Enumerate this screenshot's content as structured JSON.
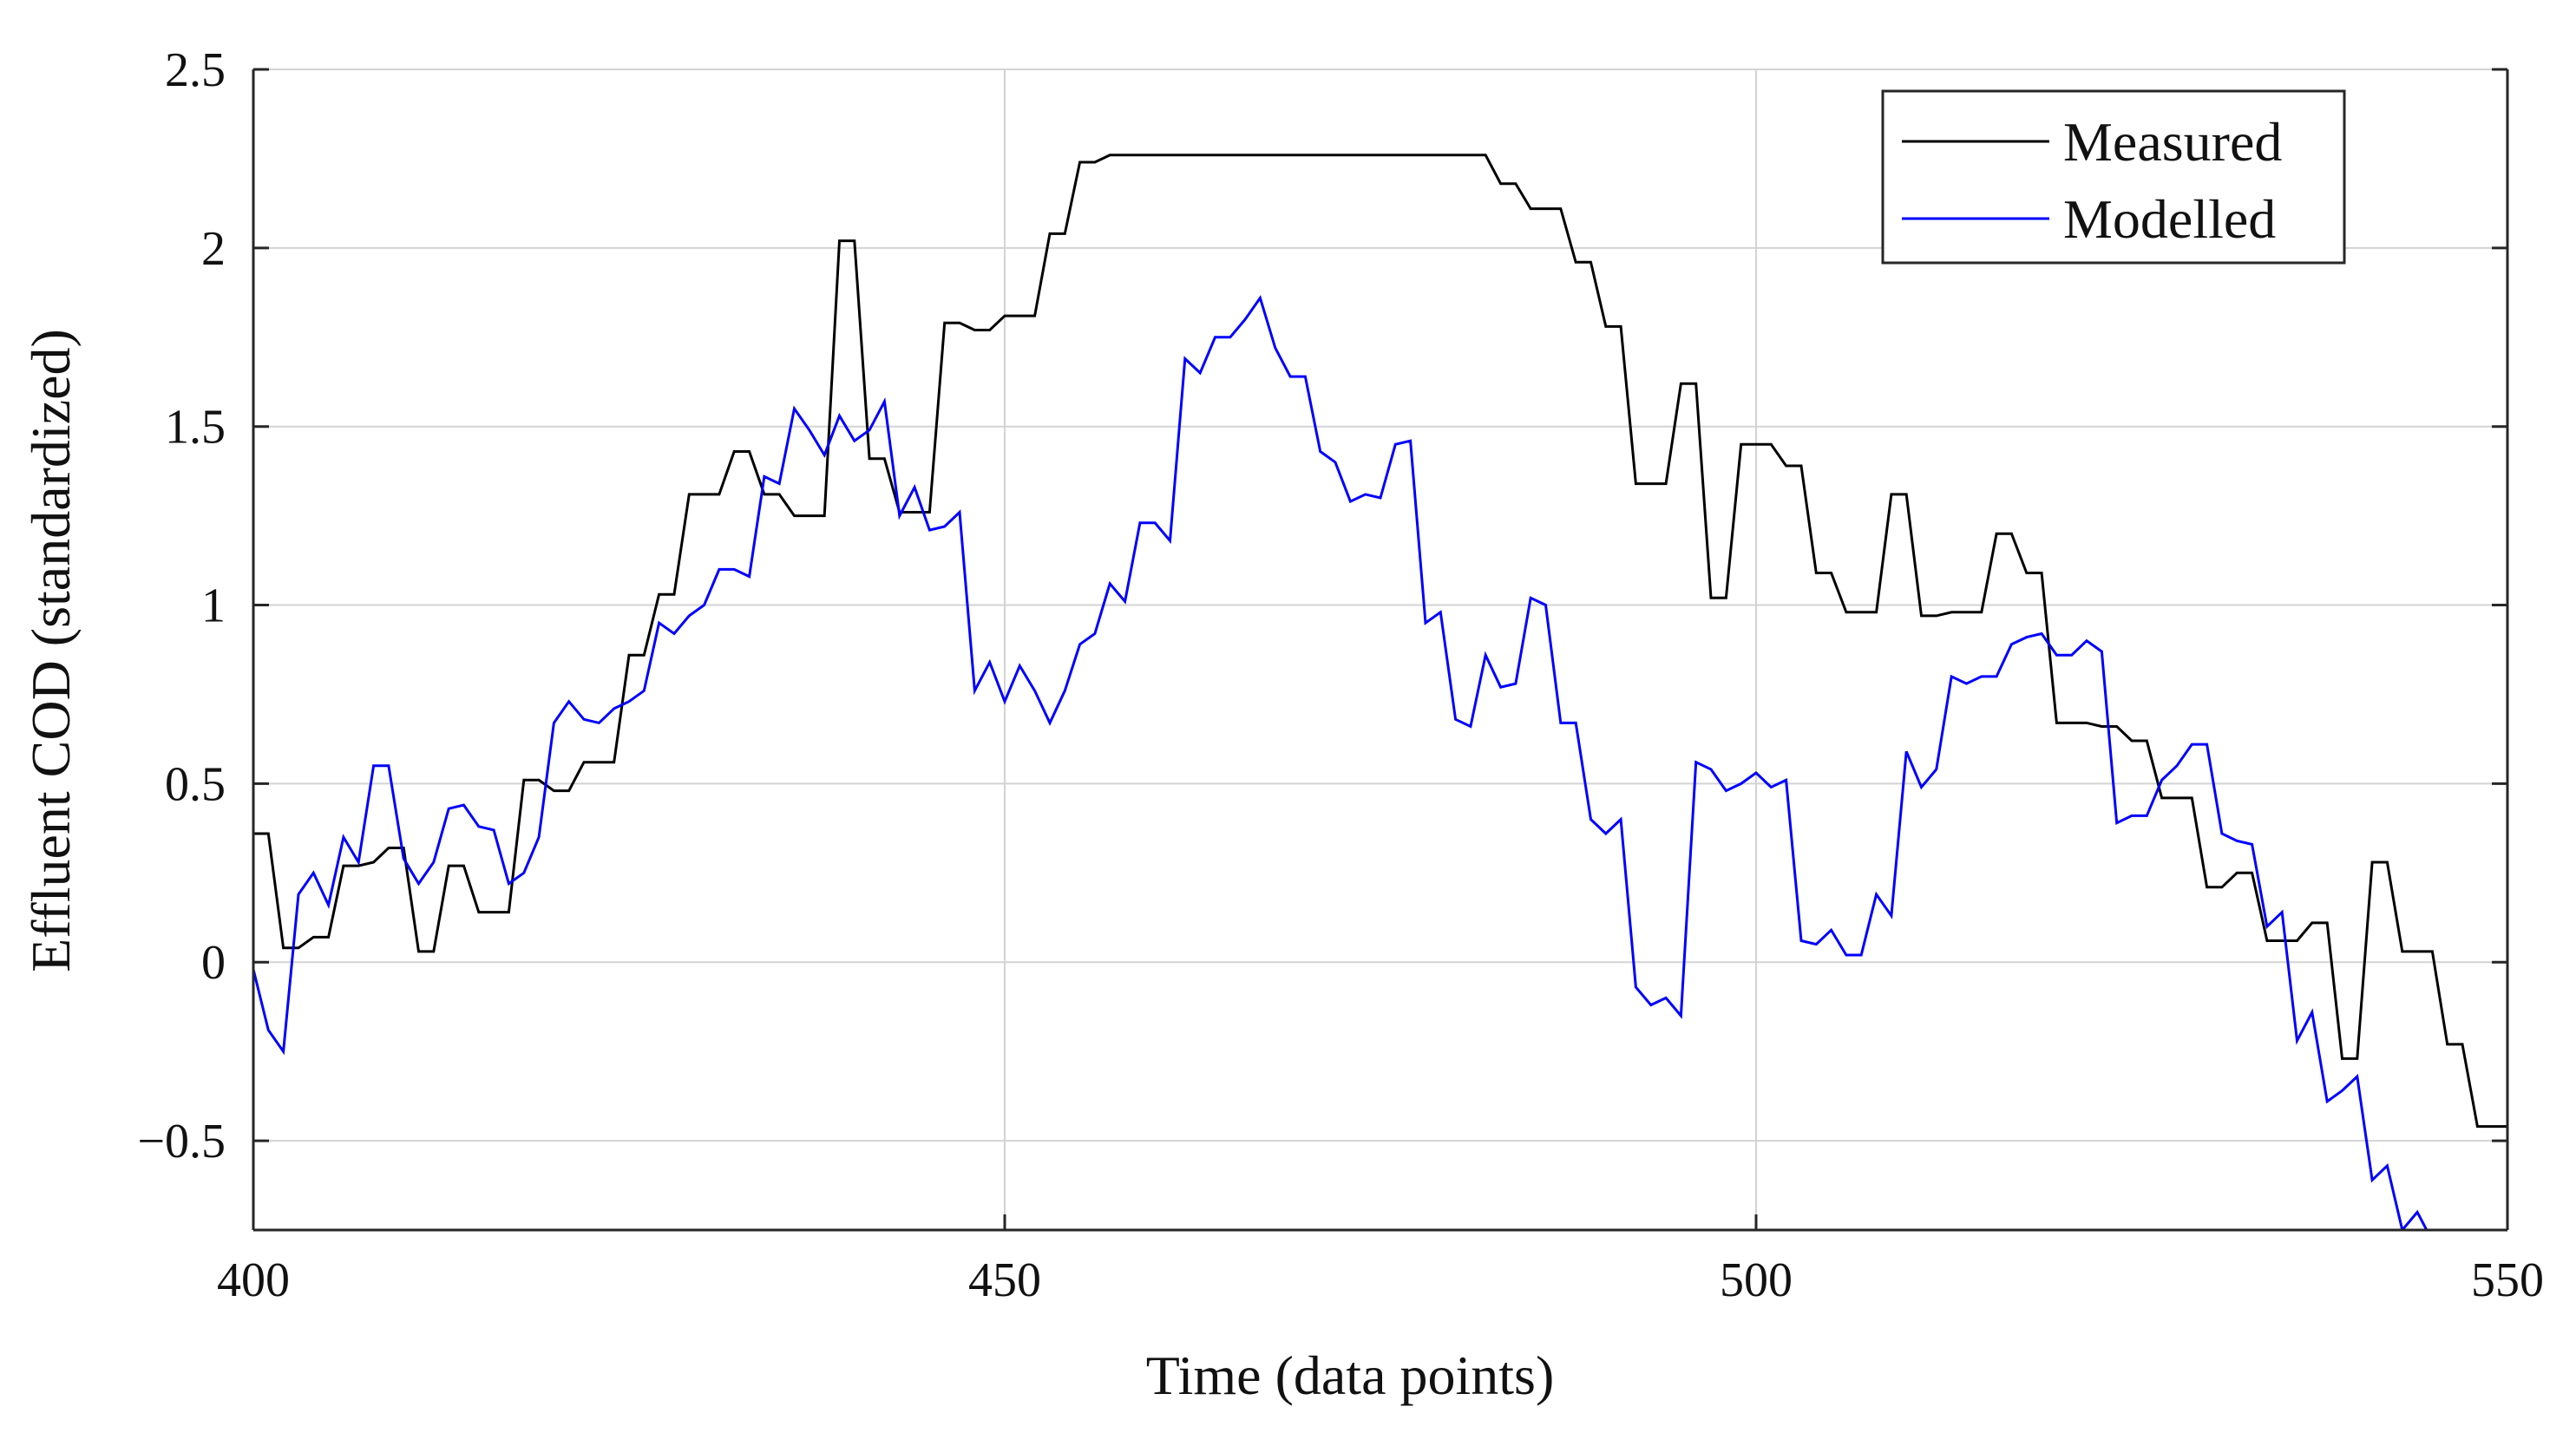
{
  "chart_data": {
    "type": "line",
    "xlabel": "Time (data points)",
    "ylabel": "Effluent COD (standardized)",
    "xlim": [
      400,
      550
    ],
    "ylim": [
      -0.75,
      2.5
    ],
    "xticks": [
      400,
      450,
      500,
      550
    ],
    "xtick_labels": [
      "400",
      "450",
      "500",
      "550"
    ],
    "yticks": [
      -0.5,
      0,
      0.5,
      1,
      1.5,
      2,
      2.5
    ],
    "ytick_labels": [
      "−0.5",
      "0",
      "0.5",
      "1",
      "1.5",
      "2",
      "2.5"
    ],
    "grid": true,
    "legend_position": "top-right",
    "series": [
      {
        "name": "Measured",
        "color": "#000000",
        "x": [
          400,
          401,
          402,
          403,
          404,
          405,
          406,
          407,
          408,
          409,
          410,
          411,
          412,
          413,
          414,
          415,
          416,
          417,
          418,
          419,
          420,
          421,
          422,
          423,
          424,
          425,
          426,
          427,
          428,
          429,
          430,
          431,
          432,
          433,
          434,
          435,
          436,
          437,
          438,
          439,
          440,
          441,
          442,
          443,
          444,
          445,
          446,
          447,
          448,
          449,
          450,
          451,
          452,
          453,
          454,
          455,
          456,
          457,
          458,
          459,
          460,
          461,
          462,
          463,
          464,
          465,
          466,
          467,
          468,
          469,
          470,
          471,
          472,
          473,
          474,
          475,
          476,
          477,
          478,
          479,
          480,
          481,
          482,
          483,
          484,
          485,
          486,
          487,
          488,
          489,
          490,
          491,
          492,
          493,
          494,
          495,
          496,
          497,
          498,
          499,
          500,
          501,
          502,
          503,
          504,
          505,
          506,
          507,
          508,
          509,
          510,
          511,
          512,
          513,
          514,
          515,
          516,
          517,
          518,
          519,
          520,
          521,
          522,
          523,
          524,
          525,
          526,
          527,
          528,
          529,
          530,
          531,
          532,
          533,
          534,
          535,
          536,
          537,
          538,
          539,
          540,
          541,
          542,
          543,
          544,
          545,
          546,
          547,
          548,
          549,
          550
        ],
        "y": [
          0.36,
          0.36,
          0.04,
          0.04,
          0.07,
          0.07,
          0.27,
          0.27,
          0.28,
          0.32,
          0.32,
          0.03,
          0.03,
          0.27,
          0.27,
          0.14,
          0.14,
          0.14,
          0.51,
          0.51,
          0.48,
          0.48,
          0.56,
          0.56,
          0.56,
          0.86,
          0.86,
          1.03,
          1.03,
          1.31,
          1.31,
          1.31,
          1.43,
          1.43,
          1.31,
          1.31,
          1.25,
          1.25,
          1.25,
          2.02,
          2.02,
          1.41,
          1.41,
          1.26,
          1.26,
          1.26,
          1.79,
          1.79,
          1.77,
          1.77,
          1.81,
          1.81,
          1.81,
          2.04,
          2.04,
          2.24,
          2.24,
          2.26,
          2.26,
          2.26,
          2.26,
          2.26,
          2.26,
          2.26,
          2.26,
          2.26,
          2.26,
          2.26,
          2.26,
          2.26,
          2.26,
          2.26,
          2.26,
          2.26,
          2.26,
          2.26,
          2.26,
          2.26,
          2.26,
          2.26,
          2.26,
          2.26,
          2.26,
          2.18,
          2.18,
          2.11,
          2.11,
          2.11,
          1.96,
          1.96,
          1.78,
          1.78,
          1.34,
          1.34,
          1.34,
          1.62,
          1.62,
          1.02,
          1.02,
          1.45,
          1.45,
          1.45,
          1.39,
          1.39,
          1.09,
          1.09,
          0.98,
          0.98,
          0.98,
          1.31,
          1.31,
          0.97,
          0.97,
          0.98,
          0.98,
          0.98,
          1.2,
          1.2,
          1.09,
          1.09,
          0.67,
          0.67,
          0.67,
          0.66,
          0.66,
          0.62,
          0.62,
          0.46,
          0.46,
          0.46,
          0.21,
          0.21,
          0.25,
          0.25,
          0.06,
          0.06,
          0.06,
          0.11,
          0.11,
          -0.27,
          -0.27,
          0.28,
          0.28,
          0.03,
          0.03,
          0.03,
          -0.23,
          -0.23,
          -0.46,
          -0.46,
          -0.46
        ]
      },
      {
        "name": "Modelled",
        "color": "#0000ff",
        "x": [
          400,
          401,
          402,
          403,
          404,
          405,
          406,
          407,
          408,
          409,
          410,
          411,
          412,
          413,
          414,
          415,
          416,
          417,
          418,
          419,
          420,
          421,
          422,
          423,
          424,
          425,
          426,
          427,
          428,
          429,
          430,
          431,
          432,
          433,
          434,
          435,
          436,
          437,
          438,
          439,
          440,
          441,
          442,
          443,
          444,
          445,
          446,
          447,
          448,
          449,
          450,
          451,
          452,
          453,
          454,
          455,
          456,
          457,
          458,
          459,
          460,
          461,
          462,
          463,
          464,
          465,
          466,
          467,
          468,
          469,
          470,
          471,
          472,
          473,
          474,
          475,
          476,
          477,
          478,
          479,
          480,
          481,
          482,
          483,
          484,
          485,
          486,
          487,
          488,
          489,
          490,
          491,
          492,
          493,
          494,
          495,
          496,
          497,
          498,
          499,
          500,
          501,
          502,
          503,
          504,
          505,
          506,
          507,
          508,
          509,
          510,
          511,
          512,
          513,
          514,
          515,
          516,
          517,
          518,
          519,
          520,
          521,
          522,
          523,
          524,
          525,
          526,
          527,
          528,
          529,
          530,
          531,
          532,
          533,
          534,
          535,
          536,
          537,
          538,
          539,
          540,
          541,
          542,
          543,
          544,
          545
        ],
        "y": [
          -0.02,
          -0.19,
          -0.25,
          0.19,
          0.25,
          0.16,
          0.35,
          0.28,
          0.55,
          0.55,
          0.29,
          0.22,
          0.28,
          0.43,
          0.44,
          0.38,
          0.37,
          0.22,
          0.25,
          0.35,
          0.67,
          0.73,
          0.68,
          0.67,
          0.71,
          0.73,
          0.76,
          0.95,
          0.92,
          0.97,
          1.0,
          1.1,
          1.1,
          1.08,
          1.36,
          1.34,
          1.55,
          1.49,
          1.42,
          1.53,
          1.46,
          1.49,
          1.57,
          1.25,
          1.33,
          1.21,
          1.22,
          1.26,
          0.76,
          0.84,
          0.73,
          0.83,
          0.76,
          0.67,
          0.76,
          0.89,
          0.92,
          1.06,
          1.01,
          1.23,
          1.23,
          1.18,
          1.69,
          1.65,
          1.75,
          1.75,
          1.8,
          1.86,
          1.72,
          1.64,
          1.64,
          1.43,
          1.4,
          1.29,
          1.31,
          1.3,
          1.45,
          1.46,
          0.95,
          0.98,
          0.68,
          0.66,
          0.86,
          0.77,
          0.78,
          1.02,
          1.0,
          0.67,
          0.67,
          0.4,
          0.36,
          0.4,
          -0.07,
          -0.12,
          -0.1,
          -0.15,
          0.56,
          0.54,
          0.48,
          0.5,
          0.53,
          0.49,
          0.51,
          0.06,
          0.05,
          0.09,
          0.02,
          0.02,
          0.19,
          0.13,
          0.59,
          0.49,
          0.54,
          0.8,
          0.78,
          0.8,
          0.8,
          0.89,
          0.91,
          0.92,
          0.86,
          0.86,
          0.9,
          0.87,
          0.39,
          0.41,
          0.41,
          0.51,
          0.55,
          0.61,
          0.61,
          0.36,
          0.34,
          0.33,
          0.1,
          0.14,
          -0.22,
          -0.14,
          -0.39,
          -0.36,
          -0.32,
          -0.61,
          -0.57,
          -0.75,
          -0.7,
          -0.78
        ]
      }
    ]
  }
}
